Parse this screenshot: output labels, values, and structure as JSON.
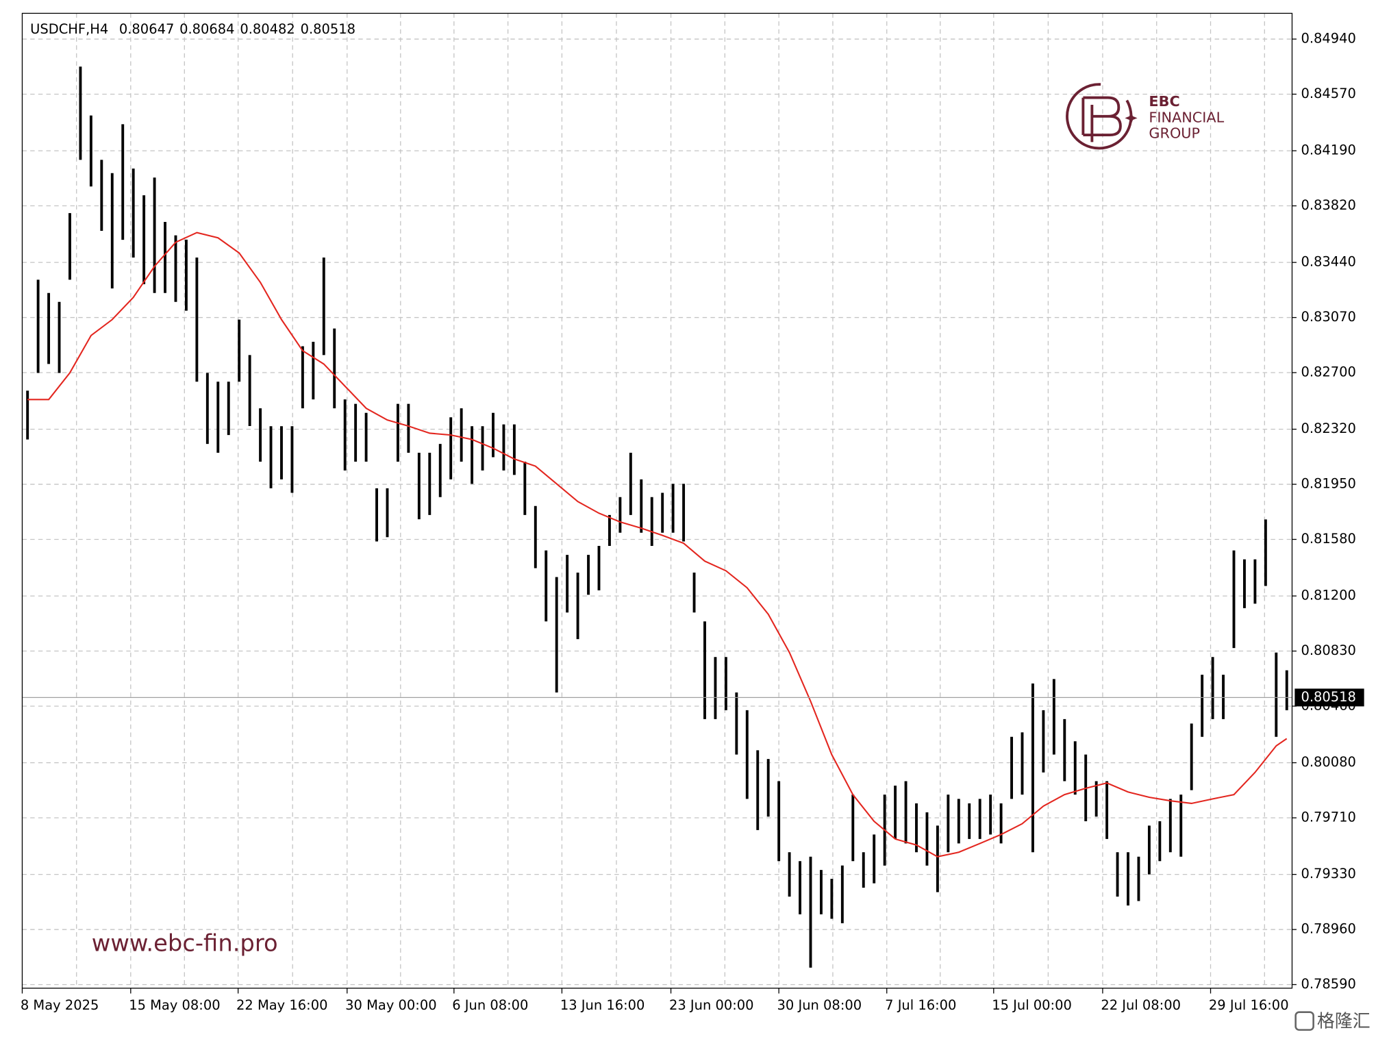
{
  "chart_data": {
    "type": "ohlc",
    "symbol": "USDCHF,H4",
    "quote": [
      0.80647,
      0.80684,
      0.80482,
      0.80518
    ],
    "color": "#000000",
    "high": [
      0.82579,
      0.83324,
      0.83235,
      0.83175,
      0.83771,
      0.84755,
      0.84427,
      0.84129,
      0.8404,
      0.84368,
      0.8407,
      0.83891,
      0.8401,
      0.83712,
      0.83622,
      0.83593,
      0.83473,
      0.82698,
      0.82639,
      0.82639,
      0.83056,
      0.82818,
      0.8246,
      0.8234,
      0.8234,
      0.8234,
      0.82877,
      0.82907,
      0.83473,
      0.82996,
      0.8252,
      0.8249,
      0.8243,
      0.81923,
      0.81923,
      0.8249,
      0.8249,
      0.82162,
      0.82162,
      0.82221,
      0.824,
      0.8246,
      0.8234,
      0.8234,
      0.8243,
      0.82352,
      0.82352,
      0.82102,
      0.81804,
      0.81506,
      0.81327,
      0.81476,
      0.81357,
      0.81476,
      0.81536,
      0.81744,
      0.81864,
      0.82162,
      0.81983,
      0.81864,
      0.81893,
      0.81953,
      0.81953,
      0.81357,
      0.81029,
      0.8079,
      0.8079,
      0.80552,
      0.80433,
      0.80164,
      0.80105,
      0.79956,
      0.79479,
      0.79419,
      0.79449,
      0.7936,
      0.793,
      0.7939,
      0.79866,
      0.79479,
      0.79598,
      0.79866,
      0.79926,
      0.79956,
      0.79807,
      0.79747,
      0.79658,
      0.79866,
      0.79837,
      0.79807,
      0.79837,
      0.79866,
      0.79807,
      0.80254,
      0.80284,
      0.80612,
      0.80433,
      0.80642,
      0.80373,
      0.80224,
      0.80135,
      0.79956,
      0.79956,
      0.79479,
      0.79479,
      0.79449,
      0.79658,
      0.79687,
      0.79837,
      0.79866,
      0.80343,
      0.80671,
      0.8079,
      0.80671,
      0.81506,
      0.81446,
      0.81446,
      0.81714,
      0.8082,
      0.80701
    ],
    "low": [
      0.82251,
      0.82698,
      0.82758,
      0.82698,
      0.83324,
      0.84129,
      0.8395,
      0.83652,
      0.83265,
      0.83592,
      0.83473,
      0.83294,
      0.83235,
      0.83235,
      0.83175,
      0.83116,
      0.82639,
      0.82221,
      0.82162,
      0.82281,
      0.82639,
      0.82341,
      0.82102,
      0.81923,
      0.81983,
      0.81893,
      0.8246,
      0.8252,
      0.82818,
      0.8246,
      0.82043,
      0.82102,
      0.82102,
      0.81566,
      0.81595,
      0.82102,
      0.82162,
      0.81715,
      0.81744,
      0.81864,
      0.81983,
      0.82102,
      0.81953,
      0.82043,
      0.82132,
      0.82043,
      0.82013,
      0.81744,
      0.81387,
      0.81029,
      0.80552,
      0.81089,
      0.8091,
      0.81208,
      0.81238,
      0.81536,
      0.81625,
      0.81744,
      0.81625,
      0.81536,
      0.81625,
      0.81625,
      0.81566,
      0.81089,
      0.80373,
      0.80373,
      0.80433,
      0.80135,
      0.79837,
      0.79628,
      0.79718,
      0.79419,
      0.79181,
      0.79062,
      0.78704,
      0.79062,
      0.79032,
      0.79002,
      0.79419,
      0.79241,
      0.7927,
      0.79389,
      0.79568,
      0.79538,
      0.79479,
      0.79389,
      0.79211,
      0.79479,
      0.79538,
      0.79568,
      0.79568,
      0.79598,
      0.79538,
      0.79837,
      0.79866,
      0.79479,
      0.80015,
      0.80135,
      0.79956,
      0.79866,
      0.79687,
      0.79718,
      0.79568,
      0.79181,
      0.79121,
      0.79151,
      0.7933,
      0.79419,
      0.79479,
      0.79449,
      0.79896,
      0.80254,
      0.80373,
      0.80373,
      0.8085,
      0.81118,
      0.81148,
      0.81267,
      0.80254,
      0.80433
    ],
    "moving_average": {
      "color": "#e3261f",
      "x": [
        0,
        2,
        4,
        6,
        8,
        10,
        12,
        14,
        16,
        18,
        20,
        22,
        24,
        26,
        28,
        30,
        32,
        34,
        36,
        38,
        40,
        42,
        44,
        46,
        48,
        50,
        52,
        54,
        56,
        58,
        60,
        62,
        64,
        66,
        68,
        70,
        72,
        74,
        76,
        78,
        80,
        82,
        84,
        86,
        88,
        90,
        92,
        94,
        96,
        98,
        100,
        102,
        104,
        106,
        108,
        110,
        112,
        114,
        116,
        118,
        119
      ],
      "values": [
        0.82519,
        0.82519,
        0.82698,
        0.82949,
        0.83056,
        0.83205,
        0.83414,
        0.83575,
        0.8364,
        0.83605,
        0.83503,
        0.83306,
        0.83056,
        0.82847,
        0.82758,
        0.82609,
        0.8246,
        0.82382,
        0.82341,
        0.82293,
        0.82281,
        0.82251,
        0.82192,
        0.8212,
        0.82072,
        0.81953,
        0.81834,
        0.81756,
        0.81697,
        0.81655,
        0.81607,
        0.81554,
        0.81434,
        0.81369,
        0.81255,
        0.81077,
        0.8082,
        0.80492,
        0.80135,
        0.79866,
        0.79687,
        0.79568,
        0.79527,
        0.79449,
        0.79479,
        0.79538,
        0.79598,
        0.7967,
        0.79789,
        0.79866,
        0.79908,
        0.79944,
        0.79884,
        0.79848,
        0.79824,
        0.79807,
        0.79837,
        0.79866,
        0.80015,
        0.80194,
        0.80242
      ]
    },
    "last_price": {
      "value": 0.80518,
      "label": "0.80518"
    },
    "xlim": [
      -0.5,
      119.5
    ],
    "xticks": [
      {
        "value": -0.5,
        "label": "8 May 2025"
      },
      {
        "value": 4.63,
        "label": null
      },
      {
        "value": 9.75,
        "label": "15 May 08:00"
      },
      {
        "value": 14.83,
        "label": null
      },
      {
        "value": 19.9,
        "label": "22 May 16:00"
      },
      {
        "value": 25.05,
        "label": null
      },
      {
        "value": 30.2,
        "label": "30 May 00:00"
      },
      {
        "value": 35.25,
        "label": null
      },
      {
        "value": 40.3,
        "label": "6 Jun 08:00"
      },
      {
        "value": 45.4,
        "label": null
      },
      {
        "value": 50.5,
        "label": "13 Jun 16:00"
      },
      {
        "value": 55.65,
        "label": null
      },
      {
        "value": 60.8,
        "label": "23 Jun 00:00"
      },
      {
        "value": 65.9,
        "label": null
      },
      {
        "value": 71.0,
        "label": "30 Jun 08:00"
      },
      {
        "value": 76.1,
        "label": null
      },
      {
        "value": 81.2,
        "label": "7 Jul 16:00"
      },
      {
        "value": 86.25,
        "label": null
      },
      {
        "value": 91.3,
        "label": "15 Jul 00:00"
      },
      {
        "value": 96.45,
        "label": null
      },
      {
        "value": 101.6,
        "label": "22 Jul 08:00"
      },
      {
        "value": 106.7,
        "label": null
      },
      {
        "value": 111.8,
        "label": "29 Jul 16:00"
      },
      {
        "value": 116.9,
        "label": null
      }
    ],
    "ylim": [
      0.78566,
      0.85113
    ],
    "yticks": [
      {
        "value": 0.8494,
        "label": "0.84940"
      },
      {
        "value": 0.8457,
        "label": "0.84570"
      },
      {
        "value": 0.8419,
        "label": "0.84190"
      },
      {
        "value": 0.8382,
        "label": "0.83820"
      },
      {
        "value": 0.8344,
        "label": "0.83440"
      },
      {
        "value": 0.8307,
        "label": "0.83070"
      },
      {
        "value": 0.827,
        "label": "0.82700"
      },
      {
        "value": 0.8232,
        "label": "0.82320"
      },
      {
        "value": 0.8195,
        "label": "0.81950"
      },
      {
        "value": 0.8158,
        "label": "0.81580"
      },
      {
        "value": 0.812,
        "label": "0.81200"
      },
      {
        "value": 0.8083,
        "label": "0.80830"
      },
      {
        "value": 0.8046,
        "label": "0.80460"
      },
      {
        "value": 0.8008,
        "label": "0.80080"
      },
      {
        "value": 0.7971,
        "label": "0.79710"
      },
      {
        "value": 0.7933,
        "label": "0.79330"
      },
      {
        "value": 0.7896,
        "label": "0.78960"
      },
      {
        "value": 0.7859,
        "label": "0.78590"
      }
    ],
    "grid": true
  },
  "logo": {
    "line1": "EBC",
    "line2": "FINANCIAL",
    "line3": "GROUP"
  },
  "watermark": "www.ebc-fin.pro",
  "corner_mark": "格隆汇"
}
